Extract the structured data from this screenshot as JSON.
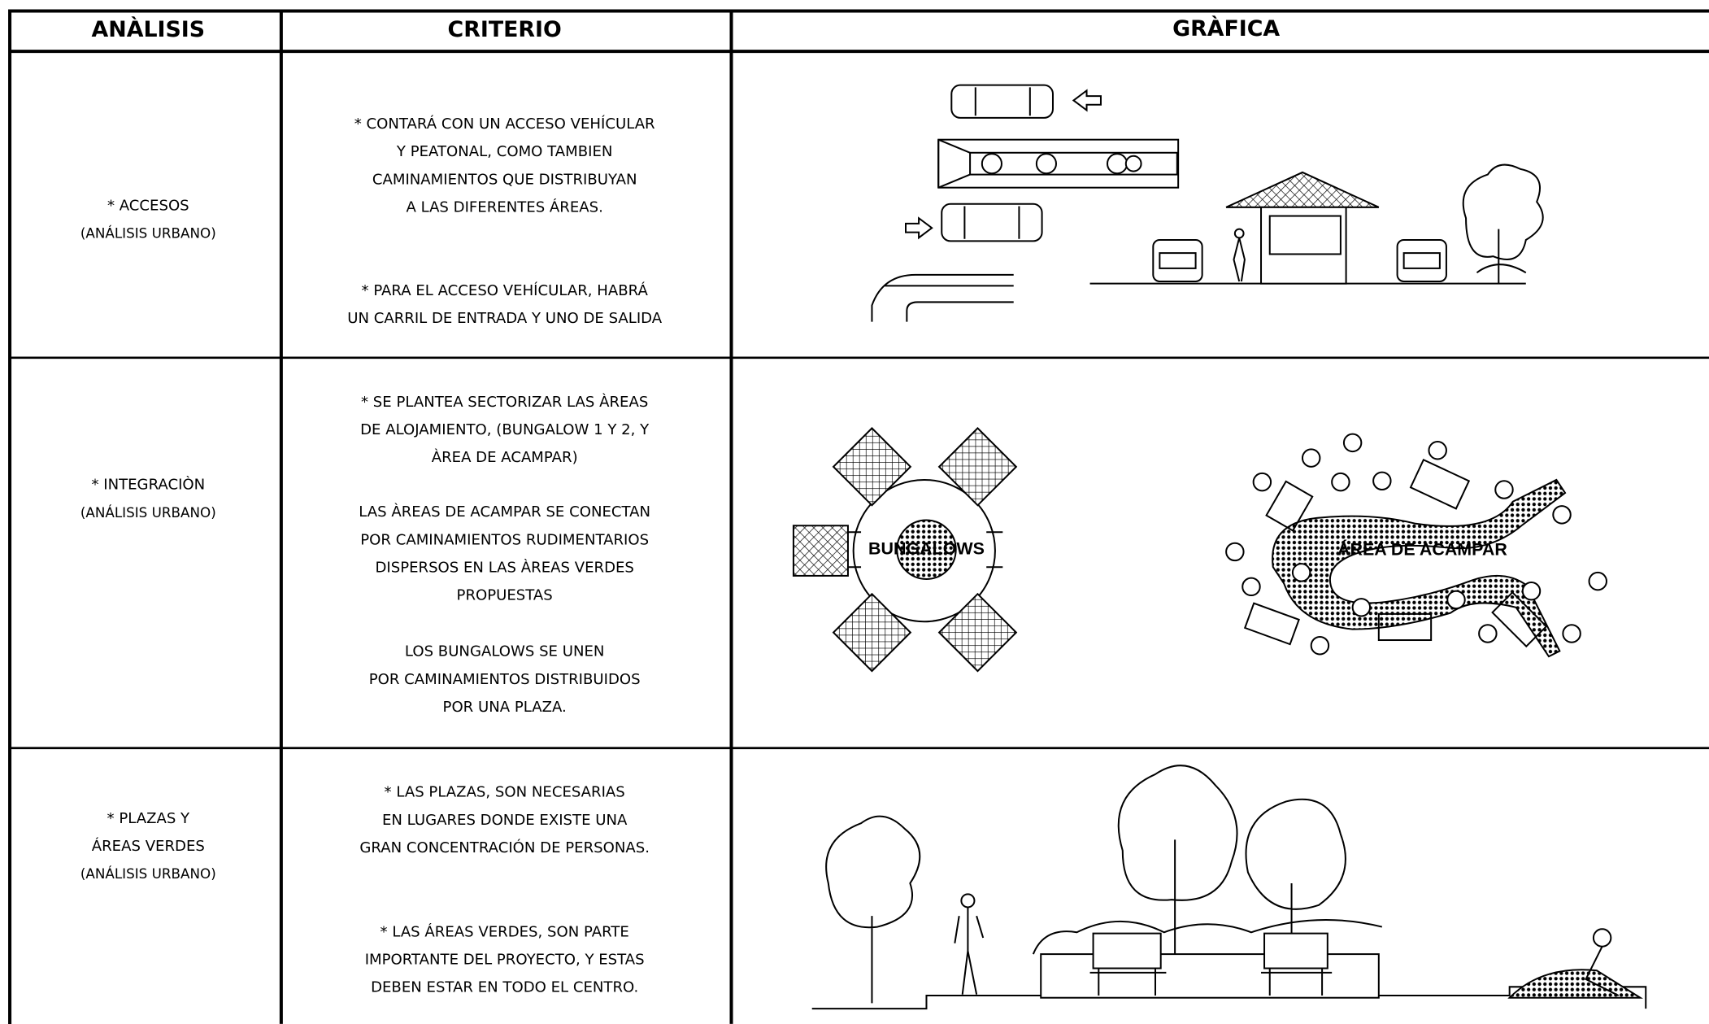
{
  "table": {
    "headers": [
      "ANÀLISIS",
      "CRITERIO",
      "GRÀFICA"
    ],
    "rows": [
      {
        "analysis": [
          "* ACCESOS",
          "(ANÁLISIS URBANO)"
        ],
        "criteria": [
          [
            "* CONTARÁ CON UN ACCESO VEHÍCULAR",
            "Y PEATONAL, COMO TAMBIEN",
            "CAMINAMIENTOS QUE DISTRIBUYAN",
            "A LAS DIFERENTES ÁREAS."
          ],
          [
            "* PARA EL ACCESO VEHÍCULAR, HABRÁ",
            "UN CARRIL DE ENTRADA Y UNO DE SALIDA"
          ]
        ]
      },
      {
        "analysis": [
          "* INTEGRACIÒN",
          "(ANÁLISIS URBANO)"
        ],
        "criteria": [
          [
            "* SE PLANTEA SECTORIZAR LAS ÀREAS",
            "DE ALOJAMIENTO, (BUNGALOW 1 Y 2, Y",
            "ÀREA DE ACAMPAR)"
          ],
          [
            "LAS ÀREAS DE ACAMPAR SE CONECTAN",
            "POR CAMINAMIENTOS RUDIMENTARIOS",
            "DISPERSOS EN LAS ÀREAS VERDES",
            "PROPUESTAS"
          ],
          [
            "LOS BUNGALOWS SE UNEN",
            "POR CAMINAMIENTOS DISTRIBUIDOS",
            "POR UNA PLAZA."
          ]
        ],
        "graphic_labels": [
          "BUNGALOWS",
          "ÁREA DE ACAMPAR"
        ]
      },
      {
        "analysis": [
          "* PLAZAS Y",
          "ÁREAS VERDES",
          "(ANÁLISIS URBANO)"
        ],
        "criteria": [
          [
            "* LAS PLAZAS, SON NECESARIAS",
            "EN LUGARES DONDE EXISTE UNA",
            "GRAN CONCENTRACIÓN DE PERSONAS."
          ],
          [
            "* LAS ÁREAS VERDES, SON PARTE",
            "IMPORTANTE DEL PROYECTO, Y ESTAS",
            "DEBEN ESTAR EN TODO EL CENTRO."
          ]
        ]
      }
    ]
  }
}
